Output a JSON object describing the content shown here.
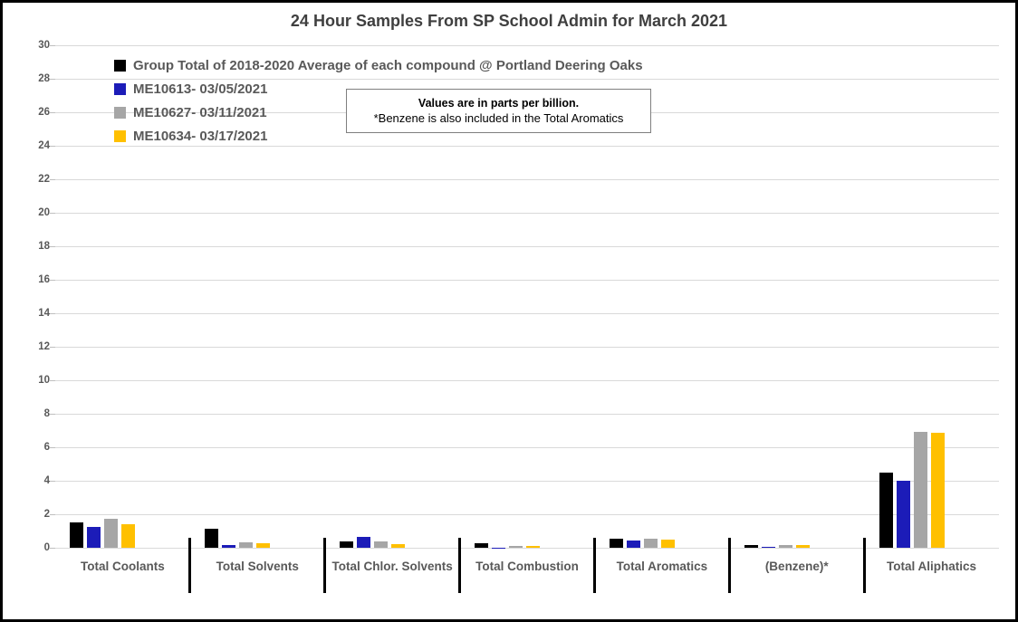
{
  "title": "24 Hour Samples From SP School Admin for March 2021",
  "note": {
    "line1": "Values are in parts per billion.",
    "line2": "*Benzene is also included in the Total Aromatics"
  },
  "colors": {
    "grid": "#d9d9d9",
    "axis_text": "#595959",
    "title_text": "#3f3f3f",
    "category_divider": "#000000"
  },
  "chart_data": {
    "type": "bar",
    "title": "24 Hour Samples From SP School Admin for March 2021",
    "categories": [
      "Total Coolants",
      "Total Solvents",
      "Total Chlor. Solvents",
      "Total Combustion",
      "Total Aromatics",
      "(Benzene)*",
      "Total Aliphatics"
    ],
    "series": [
      {
        "name": "Group Total of 2018-2020 Average of each compound @ Portland Deering Oaks",
        "color": "#000000",
        "values": [
          1.5,
          1.15,
          0.38,
          0.25,
          0.55,
          0.17,
          4.5
        ]
      },
      {
        "name": "ME10613- 03/05/2021",
        "color": "#1c1cb8",
        "values": [
          1.25,
          0.18,
          0.63,
          0.02,
          0.45,
          0.08,
          4.0
        ]
      },
      {
        "name": "ME10627- 03/11/2021",
        "color": "#a6a6a6",
        "values": [
          1.75,
          0.35,
          0.38,
          0.1,
          0.52,
          0.17,
          6.9
        ]
      },
      {
        "name": "ME10634- 03/17/2021",
        "color": "#ffc000",
        "values": [
          1.4,
          0.25,
          0.23,
          0.1,
          0.5,
          0.18,
          6.85
        ]
      }
    ],
    "xlabel": "",
    "ylabel": "",
    "ylim": [
      0,
      30
    ],
    "ytick_step": 2,
    "grid": true,
    "legend_position": "top-left",
    "units": "parts per billion"
  }
}
